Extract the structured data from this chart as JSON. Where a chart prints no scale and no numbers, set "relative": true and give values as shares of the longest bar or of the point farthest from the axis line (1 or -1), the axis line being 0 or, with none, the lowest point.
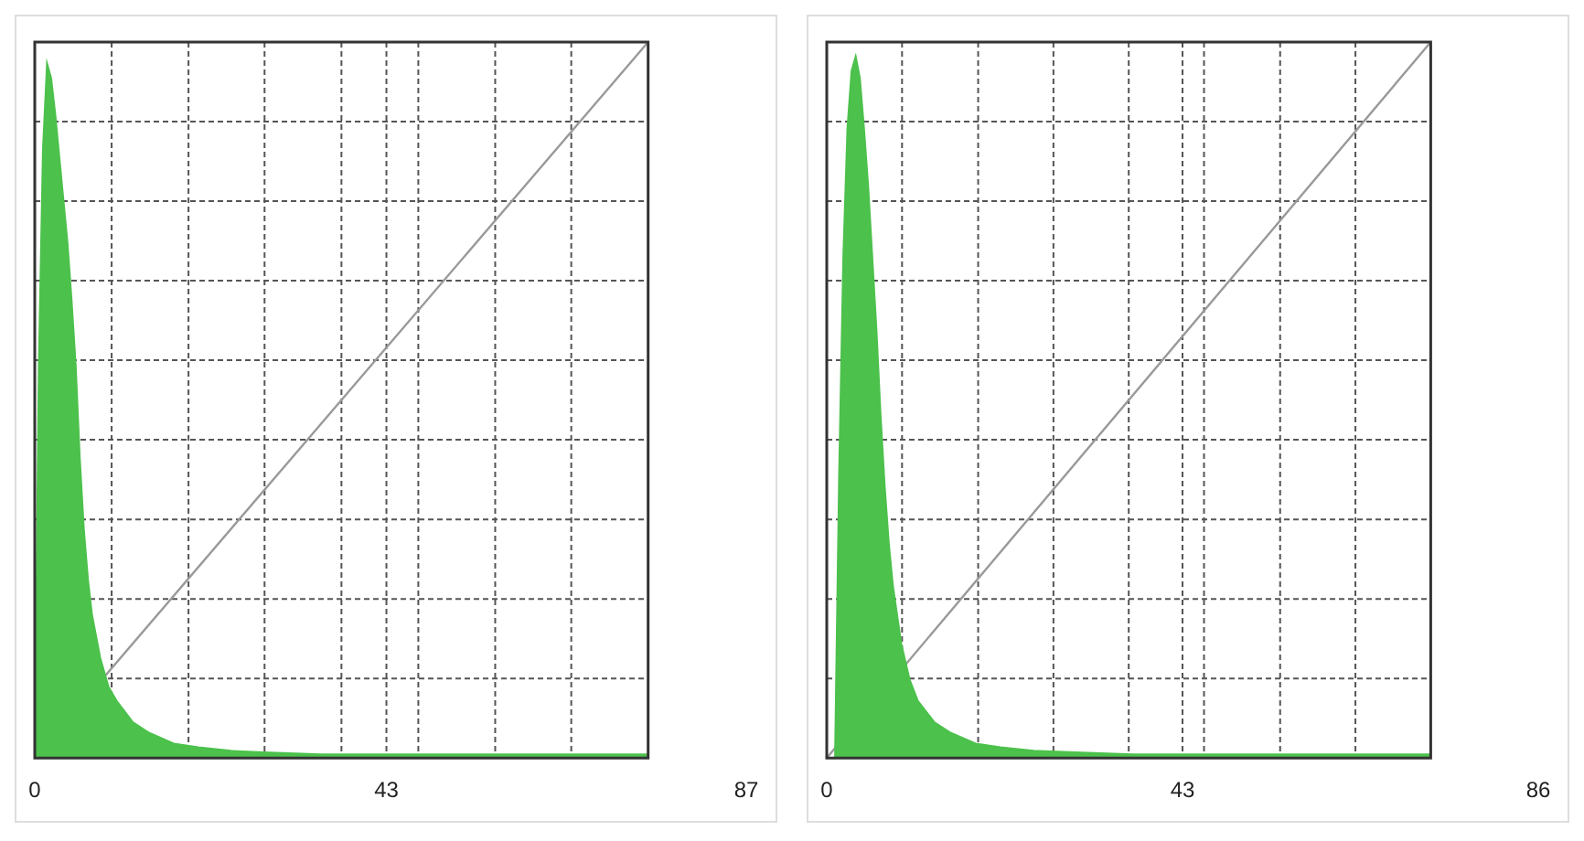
{
  "chart_data": [
    {
      "type": "area",
      "relative": true,
      "xlim": [
        0,
        87
      ],
      "xticks": [
        0,
        {
          "value": 9.4,
          "label": null
        },
        {
          "value": 18.8,
          "label": null
        },
        {
          "value": 28.1,
          "label": null
        },
        {
          "value": 37.5,
          "label": null
        },
        43,
        {
          "value": 46.9,
          "label": null
        },
        {
          "value": 56.3,
          "label": null
        },
        {
          "value": 65.6,
          "label": null
        },
        87
      ],
      "grid": true,
      "series": [
        {
          "color": "#4cc14c",
          "x": [
            0,
            0.5,
            1,
            1.5,
            2,
            2.5,
            3,
            3.5,
            4,
            4.5,
            5,
            5.5,
            6,
            6.5,
            7,
            8,
            9,
            10,
            12,
            14,
            17,
            20,
            24,
            28,
            35,
            50,
            75
          ],
          "values": [
            0,
            0.55,
            0.85,
            0.97,
            0.95,
            0.9,
            0.84,
            0.78,
            0.72,
            0.64,
            0.55,
            0.42,
            0.32,
            0.25,
            0.2,
            0.14,
            0.1,
            0.08,
            0.05,
            0.035,
            0.02,
            0.015,
            0.01,
            0.008,
            0.005,
            0.005,
            0.005
          ]
        },
        {
          "type": "line",
          "color": "#999999",
          "x": [
            0,
            75
          ],
          "values": [
            0,
            1
          ]
        }
      ]
    },
    {
      "type": "area",
      "relative": true,
      "xlim": [
        0,
        86
      ],
      "xticks": [
        0,
        {
          "value": 9.1,
          "label": null
        },
        {
          "value": 18.3,
          "label": null
        },
        {
          "value": 27.4,
          "label": null
        },
        {
          "value": 36.5,
          "label": null
        },
        43,
        {
          "value": 45.6,
          "label": null
        },
        {
          "value": 54.8,
          "label": null
        },
        {
          "value": 63.9,
          "label": null
        },
        86
      ],
      "grid": true,
      "series": [
        {
          "color": "#4cc14c",
          "x": [
            1,
            1.5,
            2,
            2.5,
            3,
            3.5,
            4,
            4.5,
            5,
            5.5,
            6,
            6.5,
            7,
            7.5,
            8,
            9,
            10,
            11,
            13,
            15,
            18,
            21,
            25,
            30,
            37,
            50,
            73
          ],
          "values": [
            0,
            0.4,
            0.7,
            0.88,
            0.96,
            0.98,
            0.95,
            0.88,
            0.8,
            0.7,
            0.6,
            0.48,
            0.38,
            0.3,
            0.24,
            0.16,
            0.11,
            0.08,
            0.05,
            0.035,
            0.02,
            0.015,
            0.01,
            0.008,
            0.005,
            0.005,
            0.005
          ]
        },
        {
          "type": "line",
          "color": "#999999",
          "x": [
            0,
            73
          ],
          "values": [
            0,
            1
          ]
        }
      ]
    }
  ]
}
